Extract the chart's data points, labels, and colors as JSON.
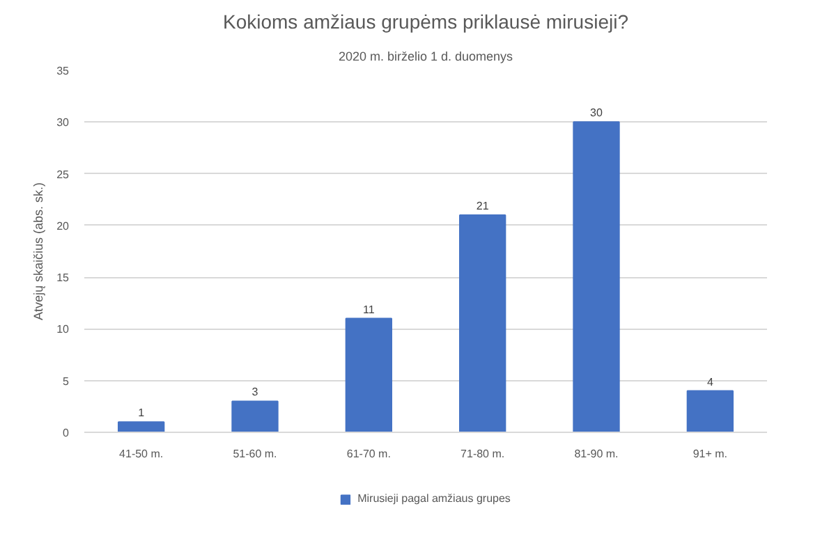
{
  "chart_data": {
    "type": "bar",
    "title": "Kokioms amžiaus grupėms priklausė mirusieji?",
    "subtitle": "2020 m. birželio 1 d. duomenys",
    "ylabel": "Atvejų skaičius (abs. sk.)",
    "categories": [
      "41-50 m.",
      "51-60 m.",
      "61-70 m.",
      "71-80 m.",
      "81-90 m.",
      "91+ m."
    ],
    "series": [
      {
        "name": "Mirusieji pagal amžiaus grupes",
        "color": "#4472c4",
        "values": [
          1,
          3,
          11,
          21,
          30,
          4
        ]
      }
    ],
    "ylim": [
      0,
      35
    ],
    "yticks": [
      0,
      5,
      10,
      15,
      20,
      25,
      30,
      35
    ],
    "grid": "y",
    "legend": "bottom",
    "data_labels": true
  }
}
